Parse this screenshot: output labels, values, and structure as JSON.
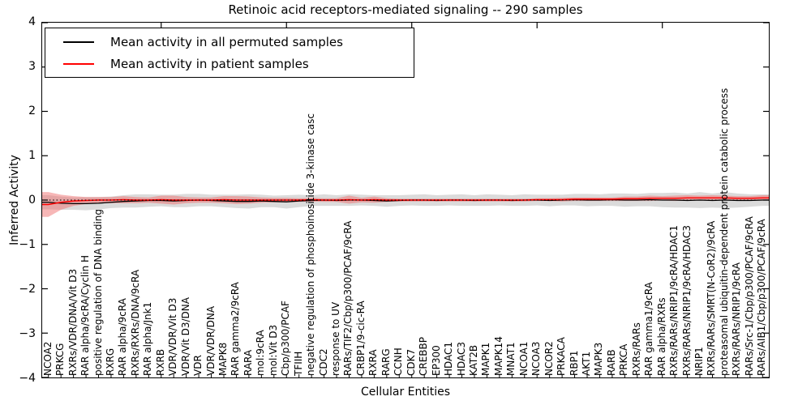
{
  "chart_data": {
    "type": "line",
    "title": "Retinoic acid receptors-mediated signaling -- 290 samples",
    "xlabel": "Cellular Entities",
    "ylabel": "Inferred Activity",
    "ylim": [
      -4,
      4
    ],
    "ytick_labels": [
      "4",
      "3",
      "2",
      "1",
      "0",
      "−1",
      "−2",
      "−3",
      "−4"
    ],
    "grid": false,
    "zero_line": {
      "style": "dotted",
      "color": "#000000",
      "y": 0
    },
    "legend": {
      "position": "upper left",
      "items": [
        {
          "label": "Mean activity in all permuted samples",
          "color": "#000000"
        },
        {
          "label": "Mean activity in patient samples",
          "color": "#ff0000"
        }
      ]
    },
    "categories": [
      "NCOA2",
      "PRKCG",
      "RXRs/VDR/DNA/Vit D3",
      "RAR alpha/9cRA/Cyclin H",
      "positive regulation of DNA binding",
      "RXRG",
      "RAR alpha/9cRA",
      "RXRs/RXRs/DNA/9cRA",
      "RAR alpha/Jnk1",
      "RXRB",
      "VDR/VDR/Vit D3",
      "VDR/Vit D3/DNA",
      "VDR",
      "VDR/VDR/DNA",
      "MAPK8",
      "RAR gamma2/9cRA",
      "RARA",
      "mol:9cRA",
      "mol:Vit D3",
      "Cbp/p300/PCAF",
      "TFIIH",
      "negative regulation of phosphoinositide 3-kinase casc",
      "CDC2",
      "response to UV",
      "RARs/TIF2/Cbp/p300/PCAF/9cRA",
      "CRBP1/9-cic-RA",
      "RXRA",
      "RARG",
      "CCNH",
      "CDK7",
      "CREBBP",
      "EP300",
      "HDAC1",
      "HDAC3",
      "KAT2B",
      "MAPK1",
      "MAPK14",
      "MNAT1",
      "NCOA1",
      "NCOA3",
      "NCOR2",
      "PRKACA",
      "RBP1",
      "AKT1",
      "MAPK3",
      "RARB",
      "PRKCA",
      "RXRs/RARs",
      "RAR gamma1/9cRA",
      "RAR alpha/RXRs",
      "RXRs/RARs/NRIP1/9cRA/HDAC1",
      "RXRs/RARs/NRIP1/9cRA/HDAC3",
      "NRIP1",
      "RXRs/RARs/SMRT(N-CoR2)/9cRA",
      "proteasomal ubiquitin-dependent protein catabolic process",
      "RXRs/RARs/NRIP1/9cRA",
      "RARs/Src-1/Cbp/p300/PCAF/9cRA",
      "RARs/AIB1/Cbp/p300/PCAF/9cRA"
    ],
    "series": [
      {
        "id": "permuted_mean",
        "name": "Mean activity in all permuted samples",
        "color": "#000000",
        "style": "solid",
        "values": [
          -0.05,
          -0.07,
          -0.08,
          -0.08,
          -0.07,
          -0.05,
          -0.03,
          -0.02,
          -0.01,
          -0.01,
          -0.02,
          -0.01,
          0,
          -0.01,
          -0.02,
          -0.03,
          -0.03,
          -0.02,
          -0.03,
          -0.04,
          -0.02,
          -0.01,
          0,
          -0.01,
          0,
          0,
          -0.01,
          -0.02,
          -0.01,
          0,
          0,
          -0.01,
          0,
          0,
          -0.01,
          0,
          0,
          -0.01,
          0,
          0,
          -0.01,
          0,
          0.01,
          0,
          0,
          0.01,
          0,
          0,
          0.01,
          0,
          0,
          -0.01,
          0,
          -0.01,
          0,
          -0.01,
          -0.01,
          0
        ]
      },
      {
        "id": "permuted_std_band",
        "name": "Permuted samples std band (half-width around permuted mean)",
        "color": "#bdbdbd",
        "opacity": 0.55,
        "values": [
          0.16,
          0.15,
          0.14,
          0.15,
          0.14,
          0.13,
          0.14,
          0.15,
          0.14,
          0.13,
          0.14,
          0.15,
          0.14,
          0.13,
          0.14,
          0.15,
          0.16,
          0.14,
          0.13,
          0.15,
          0.14,
          0.12,
          0.13,
          0.12,
          0.13,
          0.12,
          0.12,
          0.13,
          0.12,
          0.12,
          0.13,
          0.12,
          0.12,
          0.13,
          0.12,
          0.13,
          0.12,
          0.12,
          0.13,
          0.12,
          0.13,
          0.12,
          0.13,
          0.14,
          0.13,
          0.14,
          0.15,
          0.14,
          0.15,
          0.16,
          0.17,
          0.16,
          0.18,
          0.16,
          0.18,
          0.16,
          0.14,
          0.13
        ]
      },
      {
        "id": "patient_mean",
        "name": "Mean activity in patient samples",
        "color": "#ff0000",
        "style": "solid",
        "values": [
          -0.1,
          -0.05,
          -0.02,
          -0.01,
          0,
          0,
          0.01,
          0,
          0,
          0.01,
          0,
          0,
          0,
          0,
          0.01,
          0,
          0,
          0,
          0,
          0,
          0,
          0.01,
          0,
          0,
          0.01,
          0,
          0.01,
          0,
          0,
          0,
          0,
          0,
          0,
          0,
          0,
          0,
          0,
          0,
          0,
          0.01,
          0.01,
          0.01,
          0.02,
          0.02,
          0.02,
          0.02,
          0.03,
          0.03,
          0.04,
          0.04,
          0.04,
          0.05,
          0.05,
          0.05,
          0.05,
          0.04,
          0.04,
          0.05
        ]
      },
      {
        "id": "patient_std_band",
        "name": "Patient samples std band (half-width around patient mean)",
        "color": "#ef7070",
        "opacity": 0.5,
        "values": [
          0.28,
          0.17,
          0.11,
          0.08,
          0.07,
          0.07,
          0.08,
          0.07,
          0.06,
          0.09,
          0.1,
          0.07,
          0.06,
          0.06,
          0.08,
          0.09,
          0.08,
          0.06,
          0.05,
          0.05,
          0.04,
          0.04,
          0.04,
          0.04,
          0.09,
          0.05,
          0.07,
          0.04,
          0.03,
          0.03,
          0.03,
          0.03,
          0.03,
          0.03,
          0.03,
          0.03,
          0.03,
          0.03,
          0.03,
          0.03,
          0.03,
          0.04,
          0.04,
          0.04,
          0.04,
          0.04,
          0.05,
          0.05,
          0.06,
          0.05,
          0.06,
          0.06,
          0.05,
          0.06,
          0.05,
          0.05,
          0.05,
          0.06
        ]
      }
    ]
  }
}
